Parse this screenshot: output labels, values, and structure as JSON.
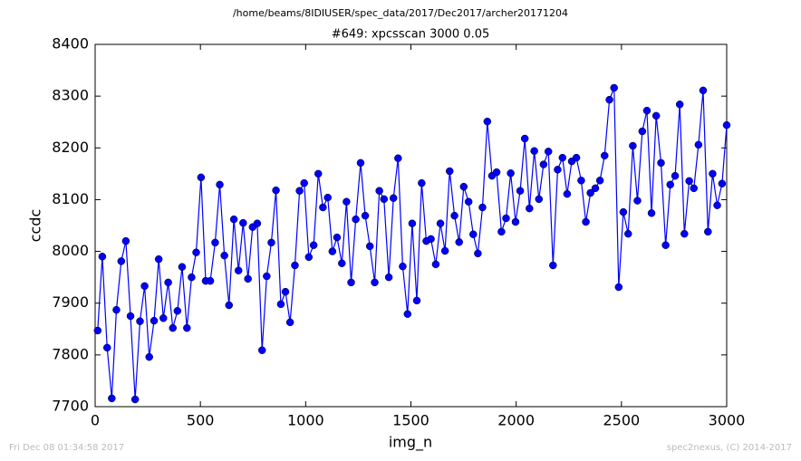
{
  "chart_data": {
    "type": "line",
    "header": "/home/beams/8IDIUSER/spec_data/2017/Dec2017/archer20171204",
    "title": "#649: xpcsscan 3000 0.05",
    "x_label": "img_n",
    "y_label": "ccdc",
    "footer_left": "Fri Dec 08 01:34:58 2017",
    "footer_right": "spec2nexus, (C) 2014-2017",
    "xlim": [
      0,
      3000
    ],
    "xticks": [
      0,
      500,
      1000,
      1500,
      2000,
      2500,
      3000
    ],
    "ylim": [
      7700,
      8400
    ],
    "yticks": [
      7700,
      7800,
      7900,
      8000,
      8100,
      8200,
      8300,
      8400
    ],
    "grid": false,
    "x": [
      12,
      34,
      57,
      79,
      101,
      124,
      146,
      168,
      190,
      213,
      235,
      257,
      280,
      302,
      324,
      347,
      369,
      391,
      413,
      436,
      458,
      480,
      503,
      525,
      547,
      570,
      592,
      614,
      636,
      659,
      681,
      703,
      726,
      748,
      770,
      793,
      815,
      837,
      859,
      882,
      904,
      926,
      949,
      971,
      993,
      1015,
      1038,
      1060,
      1082,
      1105,
      1127,
      1149,
      1172,
      1194,
      1216,
      1238,
      1261,
      1283,
      1305,
      1328,
      1350,
      1372,
      1395,
      1417,
      1439,
      1461,
      1484,
      1506,
      1528,
      1551,
      1573,
      1595,
      1618,
      1640,
      1662,
      1684,
      1707,
      1729,
      1751,
      1774,
      1796,
      1818,
      1840,
      1863,
      1885,
      1907,
      1930,
      1952,
      1974,
      1997,
      2019,
      2041,
      2063,
      2086,
      2108,
      2130,
      2153,
      2175,
      2197,
      2220,
      2242,
      2264,
      2286,
      2309,
      2331,
      2353,
      2376,
      2398,
      2420,
      2443,
      2465,
      2487,
      2509,
      2532,
      2554,
      2576,
      2599,
      2621,
      2643,
      2665,
      2688,
      2710,
      2732,
      2755,
      2777,
      2799,
      2822,
      2844,
      2866,
      2888,
      2911,
      2933,
      2955,
      2978,
      3000
    ],
    "series": [
      {
        "color": "#0000ff",
        "values": [
          7847,
          7990,
          7814,
          7716,
          7887,
          7981,
          8020,
          7875,
          7714,
          7865,
          7933,
          7796,
          7866,
          7985,
          7871,
          7940,
          7852,
          7885,
          7970,
          7852,
          7950,
          7998,
          8143,
          7943,
          7943,
          8017,
          8129,
          7992,
          7896,
          8062,
          7963,
          8055,
          7947,
          8047,
          8054,
          7809,
          7952,
          8017,
          8118,
          7898,
          7922,
          7863,
          7973,
          8117,
          8132,
          7989,
          8012,
          8150,
          8085,
          8104,
          8000,
          8027,
          7977,
          8096,
          7940,
          8062,
          8171,
          8069,
          8010,
          7940,
          8117,
          8101,
          7950,
          8103,
          8180,
          7971,
          7879,
          8054,
          7905,
          8132,
          8020,
          8024,
          7975,
          8054,
          8001,
          8155,
          8069,
          8018,
          8125,
          8096,
          8033,
          7996,
          8085,
          8251,
          8146,
          8153,
          8038,
          8064,
          8151,
          8057,
          8117,
          8218,
          8083,
          8194,
          8101,
          8168,
          8193,
          7973,
          8158,
          8181,
          8111,
          8174,
          8181,
          8137,
          8057,
          8113,
          8122,
          8137,
          8185,
          8293,
          8316,
          7931,
          8076,
          8034,
          8204,
          8098,
          8232,
          8272,
          8074,
          8262,
          8171,
          8012,
          8129,
          8146,
          8284,
          8034,
          8136,
          8122,
          8206,
          8311,
          8038,
          8150,
          8089,
          8131,
          8244
        ]
      }
    ]
  }
}
